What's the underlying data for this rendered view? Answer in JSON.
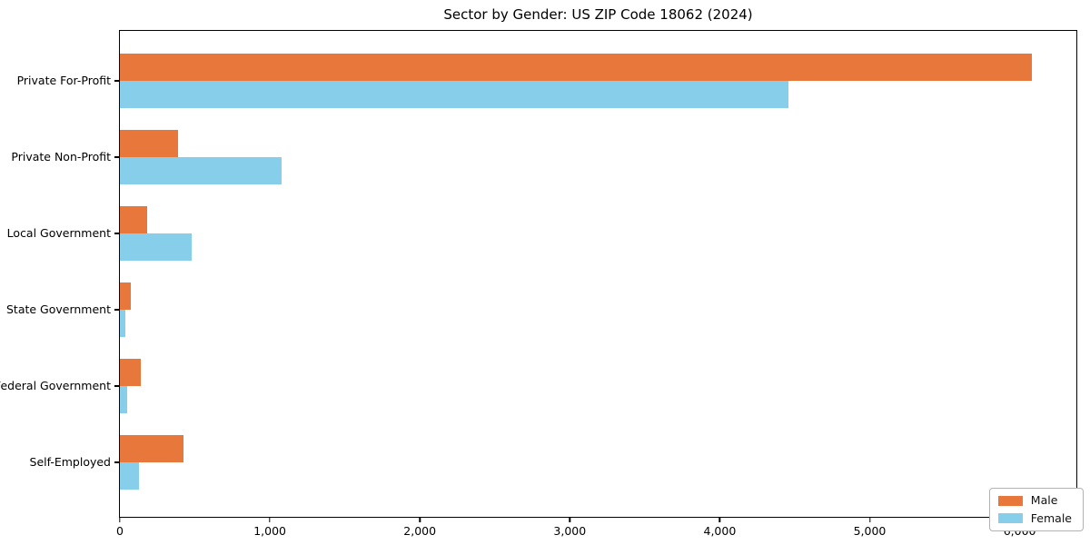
{
  "title": "Sector by Gender: US ZIP Code 18062 (2024)",
  "colors": {
    "male": "#e8773c",
    "female": "#87ceeb",
    "spine": "#000000",
    "background": "#ffffff",
    "legend_border": "#b3b3b3"
  },
  "legend": {
    "position": "lower right",
    "entries": [
      {
        "label": "Male",
        "color": "#e8773c"
      },
      {
        "label": "Female",
        "color": "#87ceeb"
      }
    ]
  },
  "chart_data": {
    "type": "bar",
    "orientation": "horizontal",
    "title": "Sector by Gender: US ZIP Code 18062 (2024)",
    "xlabel": "",
    "ylabel": "",
    "categories": [
      "Private For-Profit",
      "Private Non-Profit",
      "Local Government",
      "State Government",
      "Federal Government",
      "Self-Employed"
    ],
    "series": [
      {
        "name": "Male",
        "color": "#e8773c",
        "values": [
          6080,
          390,
          180,
          72,
          140,
          425
        ]
      },
      {
        "name": "Female",
        "color": "#87ceeb",
        "values": [
          4460,
          1080,
          480,
          36,
          48,
          127
        ]
      }
    ],
    "xlim": [
      0,
      6390
    ],
    "xticks": [
      0,
      1000,
      2000,
      3000,
      4000,
      5000,
      6000
    ],
    "xtick_labels": [
      "0",
      "1,000",
      "2,000",
      "3,000",
      "4,000",
      "5,000",
      "6,000"
    ],
    "grid": false,
    "legend_position": "lower right"
  }
}
